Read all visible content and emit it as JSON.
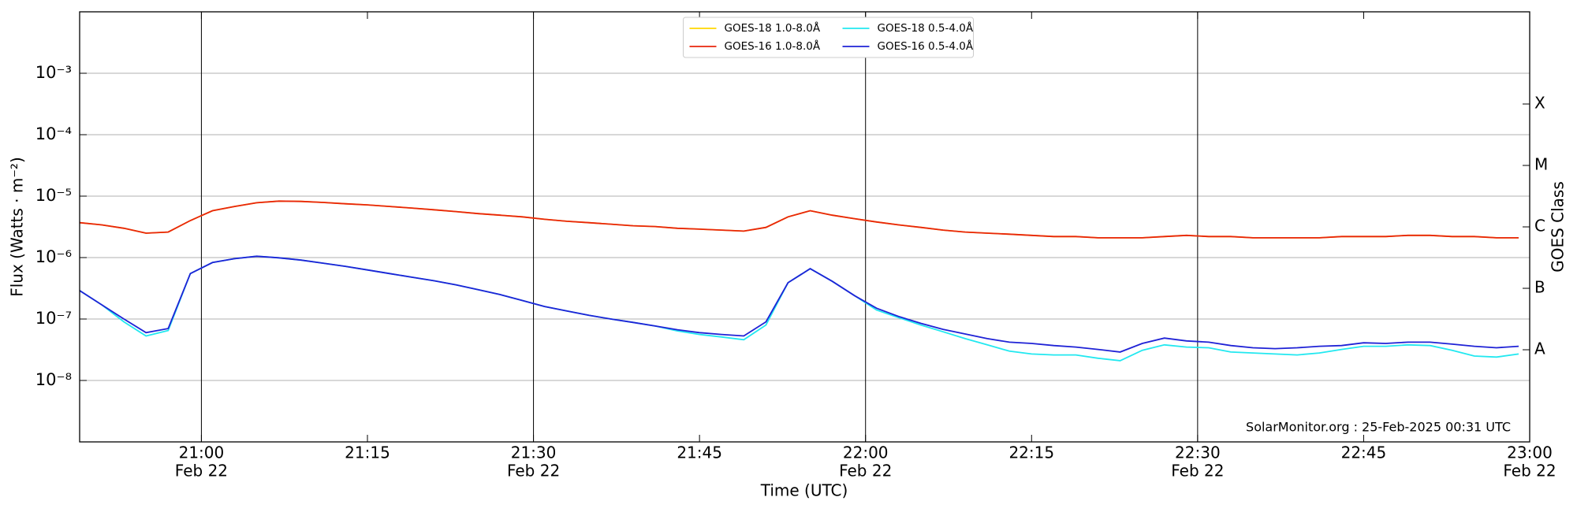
{
  "chart_data": {
    "type": "line",
    "ylabel": "Flux (Watts · m⁻²)",
    "xlabel": "Time (UTC)",
    "y2label": "GOES Class",
    "annotation": "SolarMonitor.org : 25-Feb-2025 00:31 UTC",
    "log_y": true,
    "grid": true,
    "legend": "upper center",
    "xlim": [
      "20:49",
      "23:00"
    ],
    "xticks": [
      "21:00",
      "21:15",
      "21:30",
      "21:45",
      "22:00",
      "22:15",
      "22:30",
      "22:45",
      "23:00"
    ],
    "xtick_sublabels": [
      "Feb 22",
      null,
      "Feb 22",
      null,
      "Feb 22",
      null,
      "Feb 22",
      null,
      "Feb 22"
    ],
    "ylim": [
      1e-09,
      0.01
    ],
    "yticks": [
      {
        "value": 1e-08,
        "label": "10⁻⁸"
      },
      {
        "value": 1e-07,
        "label": "10⁻⁷"
      },
      {
        "value": 1e-06,
        "label": "10⁻⁶"
      },
      {
        "value": 1e-05,
        "label": "10⁻⁵"
      },
      {
        "value": 0.0001,
        "label": "10⁻⁴"
      },
      {
        "value": 0.001,
        "label": "10⁻³"
      }
    ],
    "y2lim": [
      1e-09,
      0.01
    ],
    "y2ticks": [
      {
        "value": 3.16e-08,
        "label": "A"
      },
      {
        "value": 3.16e-07,
        "label": "B"
      },
      {
        "value": 3.16e-06,
        "label": "C"
      },
      {
        "value": 3.16e-05,
        "label": "M"
      },
      {
        "value": 0.000316,
        "label": "X"
      }
    ],
    "x": [
      "20:49",
      "20:51",
      "20:53",
      "20:55",
      "20:57",
      "20:59",
      "21:01",
      "21:03",
      "21:05",
      "21:07",
      "21:09",
      "21:11",
      "21:13",
      "21:15",
      "21:17",
      "21:19",
      "21:21",
      "21:23",
      "21:25",
      "21:27",
      "21:29",
      "21:31",
      "21:33",
      "21:35",
      "21:37",
      "21:39",
      "21:41",
      "21:43",
      "21:45",
      "21:47",
      "21:49",
      "21:51",
      "21:53",
      "21:55",
      "21:57",
      "21:59",
      "22:01",
      "22:03",
      "22:05",
      "22:07",
      "22:09",
      "22:11",
      "22:13",
      "22:15",
      "22:17",
      "22:19",
      "22:21",
      "22:23",
      "22:25",
      "22:27",
      "22:29",
      "22:31",
      "22:33",
      "22:35",
      "22:37",
      "22:39",
      "22:41",
      "22:43",
      "22:45",
      "22:47",
      "22:49",
      "22:51",
      "22:53",
      "22:55",
      "22:57",
      "22:59"
    ],
    "series": [
      {
        "name": "GOES-18 1.0-8.0Å",
        "color": "#ffd700",
        "values": [
          3.7e-06,
          3.4e-06,
          3e-06,
          2.5e-06,
          2.6e-06,
          4e-06,
          5.8e-06,
          6.8e-06,
          7.8e-06,
          8.3e-06,
          8.2e-06,
          7.9e-06,
          7.5e-06,
          7.2e-06,
          6.8e-06,
          6.4e-06,
          6e-06,
          5.6e-06,
          5.2e-06,
          4.9e-06,
          4.6e-06,
          4.2e-06,
          3.9e-06,
          3.7e-06,
          3.5e-06,
          3.3e-06,
          3.2e-06,
          3e-06,
          2.9e-06,
          2.8e-06,
          2.7e-06,
          3.1e-06,
          4.6e-06,
          5.8e-06,
          4.9e-06,
          4.3e-06,
          3.8e-06,
          3.4e-06,
          3.1e-06,
          2.8e-06,
          2.6e-06,
          2.5e-06,
          2.4e-06,
          2.3e-06,
          2.2e-06,
          2.2e-06,
          2.1e-06,
          2.1e-06,
          2.1e-06,
          2.2e-06,
          2.3e-06,
          2.2e-06,
          2.2e-06,
          2.1e-06,
          2.1e-06,
          2.1e-06,
          2.1e-06,
          2.2e-06,
          2.2e-06,
          2.2e-06,
          2.3e-06,
          2.3e-06,
          2.2e-06,
          2.2e-06,
          2.1e-06,
          2.1e-06
        ]
      },
      {
        "name": "GOES-16 1.0-8.0Å",
        "color": "#e8250c",
        "values": [
          3.7e-06,
          3.4e-06,
          3e-06,
          2.5e-06,
          2.6e-06,
          4e-06,
          5.8e-06,
          6.8e-06,
          7.8e-06,
          8.3e-06,
          8.2e-06,
          7.9e-06,
          7.5e-06,
          7.2e-06,
          6.8e-06,
          6.4e-06,
          6e-06,
          5.6e-06,
          5.2e-06,
          4.9e-06,
          4.6e-06,
          4.2e-06,
          3.9e-06,
          3.7e-06,
          3.5e-06,
          3.3e-06,
          3.2e-06,
          3e-06,
          2.9e-06,
          2.8e-06,
          2.7e-06,
          3.1e-06,
          4.6e-06,
          5.8e-06,
          4.9e-06,
          4.3e-06,
          3.8e-06,
          3.4e-06,
          3.1e-06,
          2.8e-06,
          2.6e-06,
          2.5e-06,
          2.4e-06,
          2.3e-06,
          2.2e-06,
          2.2e-06,
          2.1e-06,
          2.1e-06,
          2.1e-06,
          2.2e-06,
          2.3e-06,
          2.2e-06,
          2.2e-06,
          2.1e-06,
          2.1e-06,
          2.1e-06,
          2.1e-06,
          2.2e-06,
          2.2e-06,
          2.2e-06,
          2.3e-06,
          2.3e-06,
          2.2e-06,
          2.2e-06,
          2.1e-06,
          2.1e-06
        ]
      },
      {
        "name": "GOES-18 0.5-4.0Å",
        "color": "#22e8f0",
        "values": [
          2.9e-07,
          1.7e-07,
          9e-08,
          5.3e-08,
          6.5e-08,
          5.5e-07,
          8.3e-07,
          9.6e-07,
          1.05e-06,
          9.9e-07,
          9.1e-07,
          8.1e-07,
          7.2e-07,
          6.3e-07,
          5.5e-07,
          4.8e-07,
          4.2e-07,
          3.6e-07,
          3e-07,
          2.5e-07,
          2e-07,
          1.6e-07,
          1.35e-07,
          1.15e-07,
          1e-07,
          8.8e-08,
          7.7e-08,
          6.4e-08,
          5.6e-08,
          5.1e-08,
          4.6e-08,
          8e-08,
          3.9e-07,
          6.6e-07,
          4.1e-07,
          2.4e-07,
          1.4e-07,
          1.05e-07,
          8e-08,
          6.2e-08,
          4.8e-08,
          3.8e-08,
          3e-08,
          2.7e-08,
          2.6e-08,
          2.6e-08,
          2.3e-08,
          2.1e-08,
          3.1e-08,
          3.8e-08,
          3.5e-08,
          3.4e-08,
          2.9e-08,
          2.8e-08,
          2.7e-08,
          2.6e-08,
          2.8e-08,
          3.2e-08,
          3.6e-08,
          3.6e-08,
          3.8e-08,
          3.7e-08,
          3.1e-08,
          2.5e-08,
          2.4e-08,
          2.7e-08
        ]
      },
      {
        "name": "GOES-16 0.5-4.0Å",
        "color": "#1f22d6",
        "values": [
          2.9e-07,
          1.7e-07,
          1e-07,
          6e-08,
          7e-08,
          5.5e-07,
          8.3e-07,
          9.6e-07,
          1.05e-06,
          9.9e-07,
          9.1e-07,
          8.1e-07,
          7.2e-07,
          6.3e-07,
          5.5e-07,
          4.8e-07,
          4.2e-07,
          3.6e-07,
          3e-07,
          2.5e-07,
          2e-07,
          1.6e-07,
          1.35e-07,
          1.15e-07,
          1e-07,
          8.8e-08,
          7.7e-08,
          6.7e-08,
          6e-08,
          5.6e-08,
          5.3e-08,
          9e-08,
          3.9e-07,
          6.6e-07,
          4.1e-07,
          2.4e-07,
          1.5e-07,
          1.1e-07,
          8.5e-08,
          6.8e-08,
          5.7e-08,
          4.8e-08,
          4.2e-08,
          4e-08,
          3.7e-08,
          3.5e-08,
          3.2e-08,
          2.9e-08,
          4e-08,
          4.9e-08,
          4.4e-08,
          4.2e-08,
          3.7e-08,
          3.4e-08,
          3.3e-08,
          3.4e-08,
          3.6e-08,
          3.7e-08,
          4.1e-08,
          4e-08,
          4.2e-08,
          4.2e-08,
          3.9e-08,
          3.6e-08,
          3.4e-08,
          3.6e-08
        ]
      }
    ]
  }
}
